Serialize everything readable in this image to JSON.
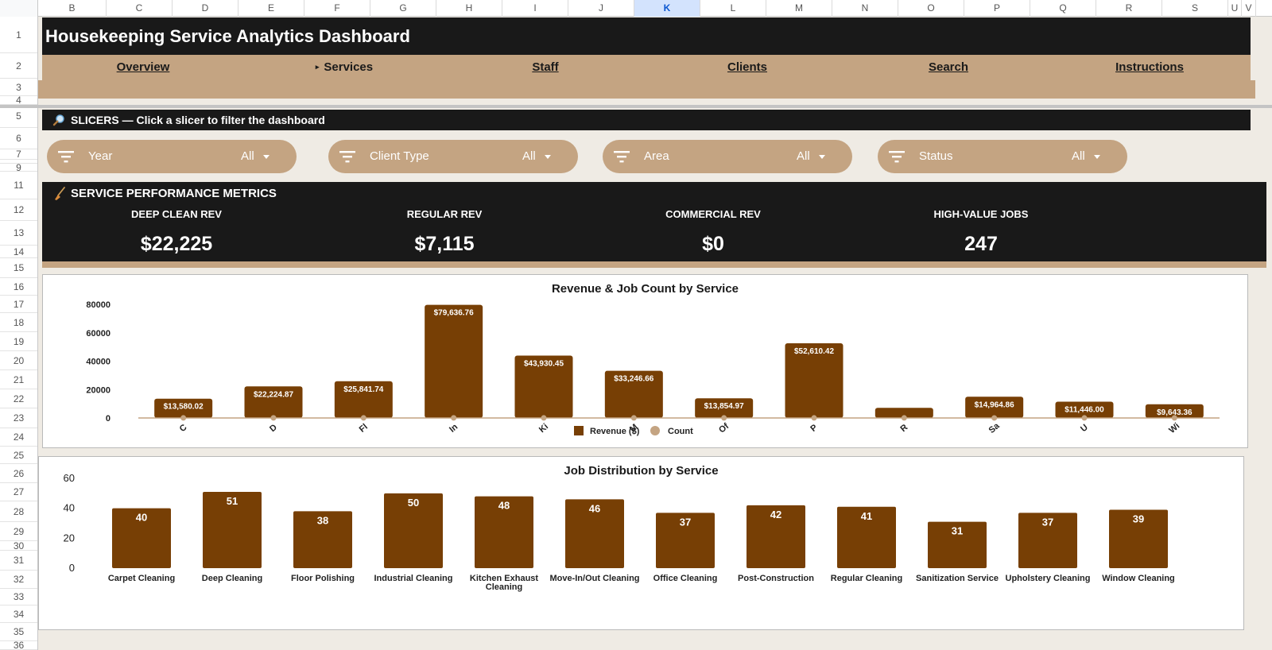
{
  "sheet": {
    "columns": [
      "B",
      "C",
      "D",
      "E",
      "F",
      "G",
      "H",
      "I",
      "J",
      "K",
      "L",
      "M",
      "N",
      "O",
      "P",
      "Q",
      "R",
      "S",
      "U",
      "V"
    ],
    "active_column": "K",
    "rows": [
      "1",
      "2",
      "3",
      "4",
      "5",
      "6",
      "7",
      "8",
      "9",
      "11",
      "12",
      "13",
      "14",
      "15",
      "16",
      "17",
      "18",
      "19",
      "20",
      "21",
      "22",
      "23",
      "24",
      "25",
      "26",
      "27",
      "28",
      "29",
      "30",
      "31",
      "32",
      "33",
      "34",
      "35",
      "36"
    ]
  },
  "header": {
    "title": "Housekeeping Service Analytics Dashboard"
  },
  "nav": {
    "items": [
      {
        "label": "Overview",
        "current": false
      },
      {
        "label": "Services",
        "current": true
      },
      {
        "label": "Staff",
        "current": false
      },
      {
        "label": "Clients",
        "current": false
      },
      {
        "label": "Search",
        "current": false
      },
      {
        "label": "Instructions",
        "current": false
      }
    ],
    "current_marker": "▸"
  },
  "slicers": {
    "heading": "SLICERS — Click a slicer to filter the dashboard",
    "heading_icon": "magnifier-icon",
    "items": [
      {
        "label": "Year",
        "value": "All"
      },
      {
        "label": "Client Type",
        "value": "All"
      },
      {
        "label": "Area",
        "value": "All"
      },
      {
        "label": "Status",
        "value": "All"
      }
    ]
  },
  "metrics": {
    "heading": "SERVICE PERFORMANCE METRICS",
    "heading_icon": "broom-icon",
    "items": [
      {
        "label": "DEEP CLEAN REV",
        "value": "$22,225"
      },
      {
        "label": "REGULAR REV",
        "value": "$7,115"
      },
      {
        "label": "COMMERCIAL REV",
        "value": "$0"
      },
      {
        "label": "HIGH-VALUE JOBS",
        "value": "247"
      }
    ]
  },
  "colors": {
    "dark": "#191919",
    "tan": "#c4a482",
    "bar": "#773f05",
    "count_dot": "#c4a482"
  },
  "chart_data": [
    {
      "type": "bar",
      "title": "Revenue & Job Count by Service",
      "categories": [
        "C",
        "D",
        "Fl",
        "In",
        "Ki",
        "M",
        "Of",
        "P",
        "R",
        "Sa",
        "U",
        "Wi"
      ],
      "series": [
        {
          "name": "Revenue ($)",
          "values": [
            13580.02,
            22224.87,
            25841.74,
            79636.76,
            43930.45,
            33246.66,
            13854.97,
            52610.42,
            7115,
            14964.86,
            11446.0,
            9643.36
          ]
        },
        {
          "name": "Count",
          "values": [
            40,
            51,
            38,
            50,
            48,
            46,
            37,
            42,
            41,
            31,
            37,
            39
          ]
        }
      ],
      "data_labels": [
        "$13,580.02",
        "$22,224.87",
        "$25,841.74",
        "$79,636.76",
        "$43,930.45",
        "$33,246.66",
        "$13,854.97",
        "$52,610.42",
        "",
        "$14,964.86",
        "$11,446.00",
        "$9,643.36"
      ],
      "y_ticks": [
        "0",
        "20000",
        "40000",
        "60000",
        "80000"
      ],
      "ylim": [
        0,
        80000
      ],
      "legend": "bottom",
      "grid": false
    },
    {
      "type": "bar",
      "title": "Job Distribution by Service",
      "categories": [
        "Carpet Cleaning",
        "Deep Cleaning",
        "Floor Polishing",
        "Industrial Cleaning",
        "Kitchen Exhaust Cleaning",
        "Move-In/Out Cleaning",
        "Office Cleaning",
        "Post-Construction",
        "Regular Cleaning",
        "Sanitization Service",
        "Upholstery Cleaning",
        "Window Cleaning"
      ],
      "values": [
        40,
        51,
        38,
        50,
        48,
        46,
        37,
        42,
        41,
        31,
        37,
        39
      ],
      "y_ticks": [
        "0",
        "20",
        "40",
        "60"
      ],
      "ylim": [
        0,
        60
      ],
      "legend": "none",
      "grid": false
    }
  ]
}
